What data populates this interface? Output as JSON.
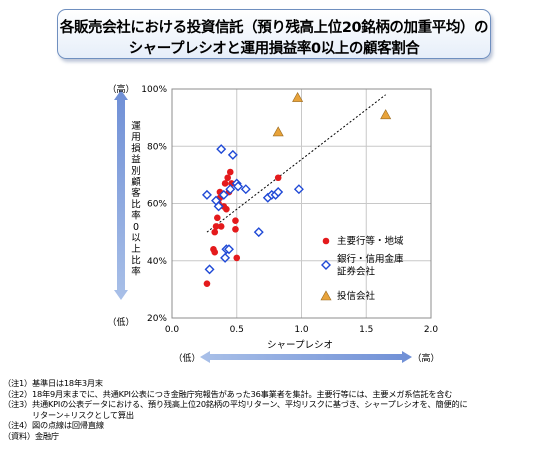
{
  "title": {
    "line1": "各販売会社における投資信託（預り残高上位20銘柄の加重平均）の",
    "line2": "シャープレシオと運用損益率0以上の顧客割合"
  },
  "chart_data": {
    "type": "scatter",
    "xlabel": "シャープレシオ",
    "ylabel": "運用損益別顧客比率0以上比率",
    "xlim": [
      0,
      2
    ],
    "ylim": [
      20,
      100
    ],
    "x_ticks": [
      "0.0",
      "0.5",
      "1.0",
      "1.5",
      "2.0"
    ],
    "y_ticks": [
      "20%",
      "40%",
      "60%",
      "80%",
      "100%"
    ],
    "y_high_label": "（高）",
    "y_low_label": "（低）",
    "x_low_label": "（低）",
    "x_high_label": "（高）",
    "grid": true,
    "legend_position": "right-inside",
    "trendline": {
      "style": "dashed",
      "from": [
        0.27,
        50
      ],
      "to": [
        1.65,
        98
      ]
    },
    "series": [
      {
        "name": "主要行等・地域",
        "marker": "circle",
        "color": "#e41a1c",
        "points": [
          [
            0.27,
            32
          ],
          [
            0.32,
            44
          ],
          [
            0.33,
            43
          ],
          [
            0.33,
            50
          ],
          [
            0.34,
            52
          ],
          [
            0.35,
            55
          ],
          [
            0.36,
            60
          ],
          [
            0.37,
            62
          ],
          [
            0.37,
            64
          ],
          [
            0.38,
            52
          ],
          [
            0.4,
            59
          ],
          [
            0.41,
            67
          ],
          [
            0.42,
            58
          ],
          [
            0.43,
            69
          ],
          [
            0.44,
            64
          ],
          [
            0.45,
            71
          ],
          [
            0.46,
            67
          ],
          [
            0.49,
            54
          ],
          [
            0.49,
            51
          ],
          [
            0.5,
            41
          ],
          [
            0.82,
            69
          ]
        ]
      },
      {
        "name": "銀行・信用金庫\n証券会社",
        "marker": "diamond",
        "color": "#1f49d6",
        "points": [
          [
            0.27,
            63
          ],
          [
            0.29,
            37
          ],
          [
            0.34,
            61
          ],
          [
            0.36,
            59
          ],
          [
            0.38,
            79
          ],
          [
            0.4,
            63
          ],
          [
            0.41,
            41
          ],
          [
            0.42,
            44
          ],
          [
            0.44,
            44
          ],
          [
            0.45,
            65
          ],
          [
            0.47,
            77
          ],
          [
            0.5,
            67
          ],
          [
            0.51,
            66
          ],
          [
            0.57,
            65
          ],
          [
            0.67,
            50
          ],
          [
            0.74,
            62
          ],
          [
            0.77,
            63
          ],
          [
            0.8,
            63
          ],
          [
            0.82,
            64
          ],
          [
            0.98,
            65
          ]
        ]
      },
      {
        "name": "投信会社",
        "marker": "triangle",
        "color": "#e8a33a",
        "points": [
          [
            0.97,
            97
          ],
          [
            0.82,
            85
          ],
          [
            1.65,
            91
          ]
        ]
      }
    ]
  },
  "notes": [
    "（注1）基準日は18年3月末",
    "（注2）18年9月末までに、共通KPI公表につき金融庁宛報告があった36事業者を集計。主要行等には、主要メガ系信託を含む",
    "（注3）共通KPIの公表データにおける、預り残高上位20銘柄の平均リターン、平均リスクに基づき、シャープレシオを、簡便的に",
    "リターン÷リスクとして算出",
    "（注4）図の点線は回帰直線",
    "（資料）金融庁"
  ],
  "colors": {
    "accent_arrow": "#8eaadc",
    "title_border": "#6f8fbf",
    "gridline": "#c8c8c8"
  }
}
